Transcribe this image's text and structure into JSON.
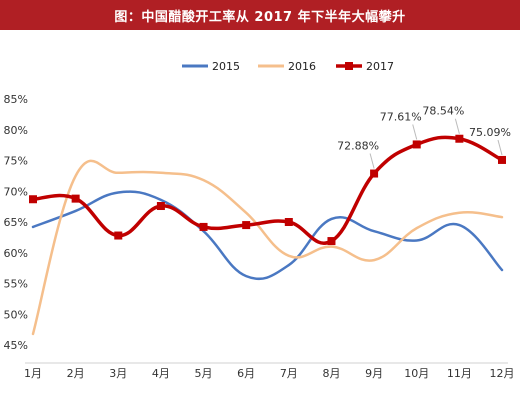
{
  "chart_data": {
    "type": "line",
    "title": "图：中国醋酸开工率从 2017 年下半年大幅攀升",
    "xlabel": "",
    "ylabel": "",
    "categories": [
      "1月",
      "2月",
      "3月",
      "4月",
      "5月",
      "6月",
      "7月",
      "8月",
      "9月",
      "10月",
      "11月",
      "12月"
    ],
    "ylim": [
      45,
      85
    ],
    "yticks": [
      45,
      50,
      55,
      60,
      65,
      70,
      75,
      80,
      85
    ],
    "ytick_suffix": "%",
    "grid": false,
    "legend_position": "top-center",
    "series": [
      {
        "name": "2015",
        "color": "#4a78c2",
        "values": [
          64.2,
          66.8,
          69.8,
          68.6,
          63.5,
          56.2,
          58.0,
          65.5,
          63.5,
          62.0,
          64.5,
          57.2
        ]
      },
      {
        "name": "2016",
        "color": "#f5bf8c",
        "values": [
          46.8,
          72.5,
          73.0,
          73.0,
          71.8,
          66.5,
          59.5,
          61.0,
          58.8,
          64.0,
          66.5,
          65.8
        ]
      },
      {
        "name": "2017",
        "color": "#c00000",
        "marker": "square",
        "values": [
          68.7,
          68.8,
          62.8,
          67.6,
          64.2,
          64.5,
          65.0,
          61.9,
          72.88,
          77.61,
          78.54,
          75.09
        ]
      }
    ],
    "annotations": [
      {
        "series": "2017",
        "index": 8,
        "text": "72.88%"
      },
      {
        "series": "2017",
        "index": 9,
        "text": "77.61%"
      },
      {
        "series": "2017",
        "index": 10,
        "text": "78.54%"
      },
      {
        "series": "2017",
        "index": 11,
        "text": "75.09%"
      }
    ]
  }
}
